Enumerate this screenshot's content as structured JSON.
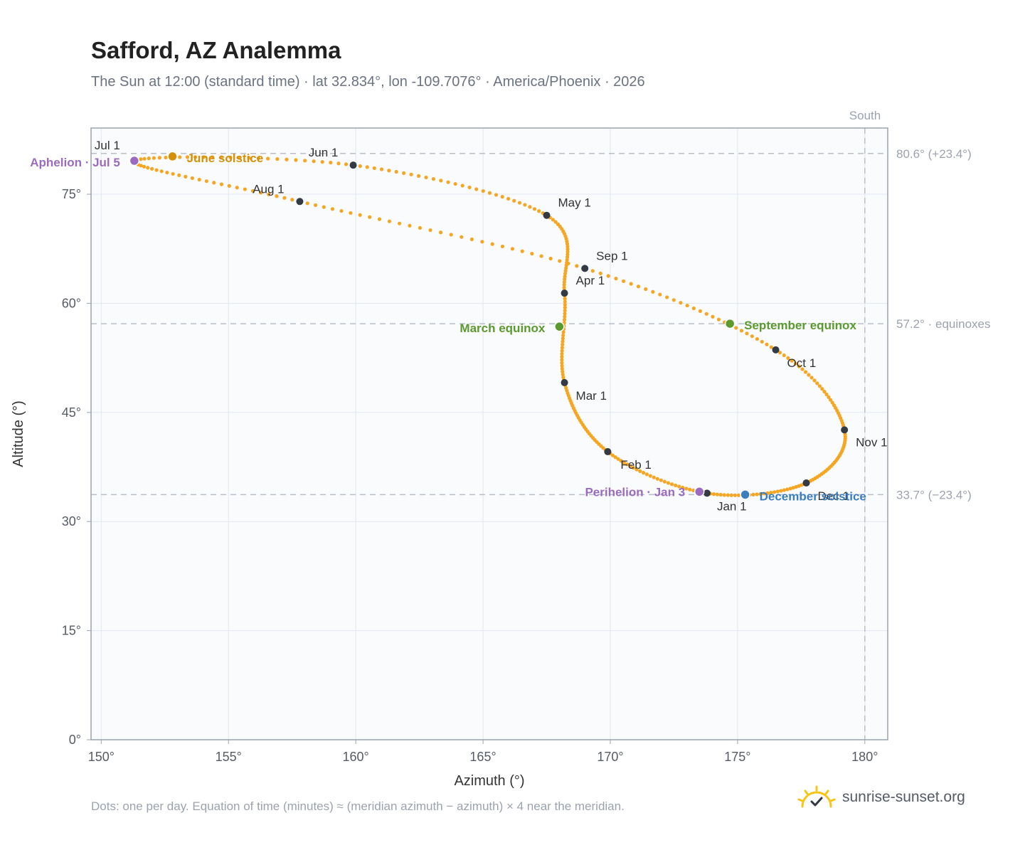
{
  "header": {
    "title": "Safford, AZ Analemma",
    "subtitle": "The Sun at 12:00 (standard time) · lat 32.834°, lon -109.7076° · America/Phoenix · 2026"
  },
  "footer": {
    "note": "Dots: one per day. Equation of time (minutes) ≈ (meridian azimuth − azimuth) × 4 near the meridian.",
    "brand": "sunrise-sunset.org",
    "brand_icon": "sun-check-icon"
  },
  "colors": {
    "path": "#f5a623",
    "month_dot": "#333a44",
    "solstice_june": "#d4900a",
    "solstice_december": "#3a7ebf",
    "equinox": "#5a9a2e",
    "apsis": "#9a6bbf",
    "plot_bg": "#f9fbfd",
    "grid": "#e3e7ee",
    "frame": "#9aa3b0",
    "ref_line": "#b9bfc8"
  },
  "chart_data": {
    "type": "scatter",
    "xlabel": "Azimuth (°)",
    "ylabel": "Altitude (°)",
    "xlim": [
      149.6,
      180.9
    ],
    "ylim": [
      0,
      84.1
    ],
    "xticks": [
      150,
      155,
      160,
      165,
      170,
      175,
      180
    ],
    "xtick_labels": [
      "150°",
      "155°",
      "160°",
      "165°",
      "170°",
      "175°",
      "180°"
    ],
    "yticks": [
      0,
      15,
      30,
      45,
      60,
      75
    ],
    "ytick_labels": [
      "0°",
      "15°",
      "30°",
      "45°",
      "60°",
      "75°"
    ],
    "grid": true,
    "meridian": {
      "azimuth": 180,
      "label": "South"
    },
    "reference_lines": [
      {
        "altitude": 80.6,
        "label": "80.6° (+23.4°)"
      },
      {
        "altitude": 57.2,
        "label": "57.2° · equinoxes"
      },
      {
        "altitude": 33.7,
        "label": "33.7° (−23.4°)"
      }
    ],
    "series": [
      {
        "points": [
          [
            173.8,
            33.9
          ],
          [
            169.9,
            39.6
          ],
          [
            168.2,
            49.1
          ],
          [
            168.2,
            61.4
          ],
          [
            167.5,
            72.1
          ],
          [
            159.9,
            79.0
          ],
          [
            151.3,
            79.6
          ],
          [
            157.8,
            74.0
          ],
          [
            169.0,
            64.8
          ],
          [
            176.5,
            53.6
          ],
          [
            179.2,
            42.6
          ],
          [
            177.7,
            35.3
          ]
        ]
      }
    ],
    "month_markers": [
      {
        "label": "Jan 1",
        "az": 173.8,
        "alt": 33.9,
        "dx": 14,
        "dy": 24,
        "anchor": "start"
      },
      {
        "label": "Feb 1",
        "az": 169.9,
        "alt": 39.6,
        "dx": 18,
        "dy": 24,
        "anchor": "start"
      },
      {
        "label": "Mar 1",
        "az": 168.2,
        "alt": 49.1,
        "dx": 16,
        "dy": 24,
        "anchor": "start"
      },
      {
        "label": "Apr 1",
        "az": 168.2,
        "alt": 61.4,
        "dx": 16,
        "dy": -12,
        "anchor": "start"
      },
      {
        "label": "May 1",
        "az": 167.5,
        "alt": 72.1,
        "dx": 16,
        "dy": -12,
        "anchor": "start"
      },
      {
        "label": "Jun 1",
        "az": 159.9,
        "alt": 79.0,
        "dx": -42,
        "dy": -12,
        "anchor": "middle"
      },
      {
        "label": "Jul 1",
        "az": 151.3,
        "alt": 79.6,
        "dx": -38,
        "dy": -16,
        "anchor": "middle"
      },
      {
        "label": "Aug 1",
        "az": 157.8,
        "alt": 74.0,
        "dx": -44,
        "dy": -12,
        "anchor": "middle"
      },
      {
        "label": "Sep 1",
        "az": 169.0,
        "alt": 64.8,
        "dx": 16,
        "dy": -12,
        "anchor": "start"
      },
      {
        "label": "Oct 1",
        "az": 176.5,
        "alt": 53.6,
        "dx": 16,
        "dy": 24,
        "anchor": "start"
      },
      {
        "label": "Nov 1",
        "az": 179.2,
        "alt": 42.6,
        "dx": 16,
        "dy": 23,
        "anchor": "start"
      },
      {
        "label": "Dec 1",
        "az": 177.7,
        "alt": 35.3,
        "dx": 16,
        "dy": 24,
        "anchor": "start"
      }
    ],
    "events": [
      {
        "label": "June solstice",
        "az": 152.8,
        "alt": 80.2,
        "color_key": "solstice_june",
        "dx": 20,
        "dy": 8,
        "anchor": "start"
      },
      {
        "label": "December solstice",
        "az": 175.3,
        "alt": 33.7,
        "color_key": "solstice_december",
        "dx": 20,
        "dy": 8,
        "anchor": "start"
      },
      {
        "label": "March equinox",
        "az": 168.0,
        "alt": 56.8,
        "color_key": "equinox",
        "dx": -20,
        "dy": 8,
        "anchor": "end"
      },
      {
        "label": "September equinox",
        "az": 174.7,
        "alt": 57.2,
        "color_key": "equinox",
        "dx": 20,
        "dy": 8,
        "anchor": "start"
      },
      {
        "label": "Aphelion · Jul 5",
        "az": 151.3,
        "alt": 79.6,
        "color_key": "apsis",
        "dx": -20,
        "dy": 8,
        "anchor": "end"
      },
      {
        "label": "Perihelion · Jan 3",
        "az": 173.5,
        "alt": 34.1,
        "color_key": "apsis",
        "dx": -20,
        "dy": 6,
        "anchor": "end"
      }
    ]
  }
}
